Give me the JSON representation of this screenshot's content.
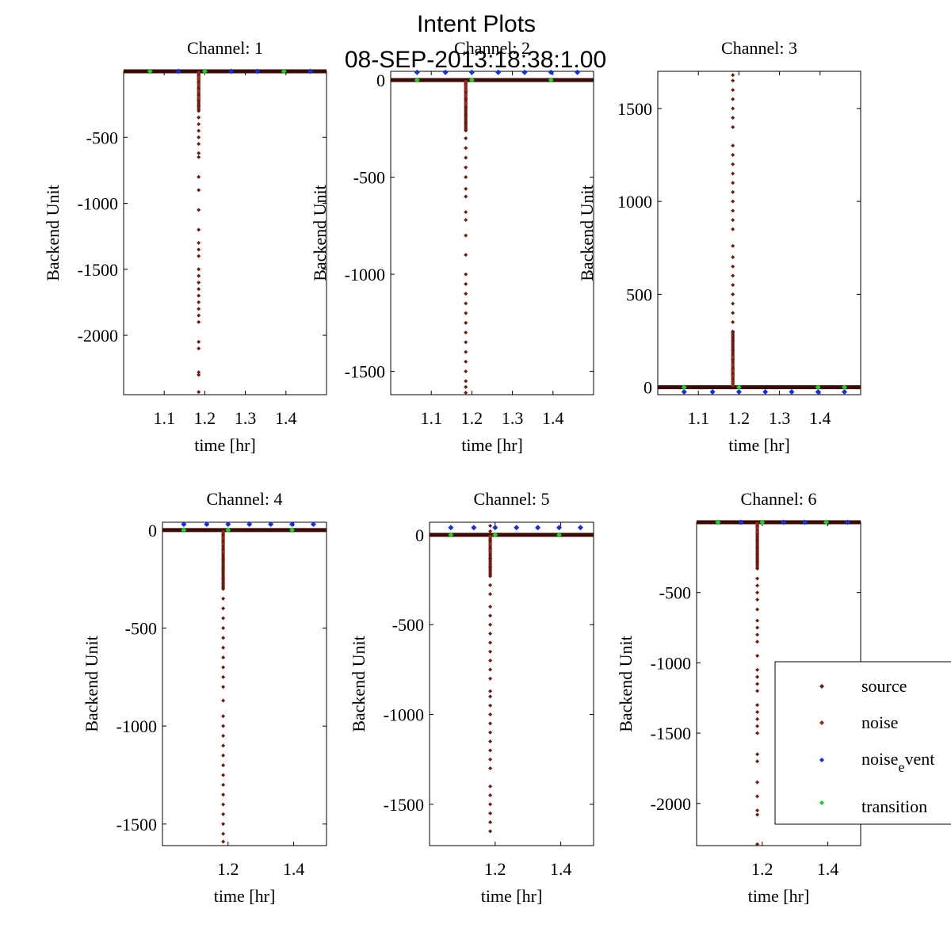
{
  "figure": {
    "title": "Intent Plots",
    "subtitle": "08-SEP-2013:18:38:1.00"
  },
  "legend": {
    "placement": "bottom-right",
    "entries": [
      {
        "label": "source",
        "color": "#6b1a10"
      },
      {
        "label": "noise",
        "color": "#a0281a"
      },
      {
        "label": "noise",
        "sub": "e",
        "rest": "vent",
        "color": "#1030e0"
      },
      {
        "label": "transition",
        "color": "#20d020"
      }
    ]
  },
  "chart_data": [
    {
      "type": "scatter",
      "title": "Channel: 1",
      "xlabel": "time [hr]",
      "ylabel": "Backend Unit",
      "xlim": [
        1.0,
        1.5
      ],
      "ylim": [
        -2450,
        0
      ],
      "xticks": [
        1.1,
        1.2,
        1.3,
        1.4
      ],
      "xtick_labels": [
        "1.1",
        "1.2",
        "1.3",
        "1.4"
      ],
      "yticks": [
        -500,
        -1000,
        -1500,
        -2000
      ],
      "ytick_labels": [
        "-500",
        "-1000",
        "-1500",
        "-2000"
      ],
      "baseline": 0,
      "event_x": 1.185,
      "noise_event": {
        "x": [
          1.065,
          1.135,
          1.2,
          1.265,
          1.33,
          1.395,
          1.46
        ],
        "y": [
          0,
          0,
          0,
          0,
          0,
          0,
          0
        ]
      },
      "transition": {
        "x": [
          1.065,
          1.2,
          1.395
        ],
        "y": [
          0,
          0,
          0
        ]
      },
      "source": {
        "x": 1.185,
        "y": [
          -30,
          -80,
          -130,
          -180,
          -220,
          -260,
          -300,
          -350,
          -400,
          -450,
          -500,
          -550,
          -620,
          -650,
          -800,
          -900,
          -1050,
          -1200,
          -1300,
          -1350,
          -1400,
          -1500,
          -1550,
          -1600,
          -1650,
          -1700,
          -1750,
          -1800,
          -1850,
          -1900,
          -2050,
          -2100,
          -2280,
          -2300,
          -2430
        ]
      },
      "noise": {
        "x": 1.185,
        "y": [
          -10,
          -40,
          -60,
          -100,
          -150,
          -200
        ]
      }
    },
    {
      "type": "scatter",
      "title": "Channel: 2",
      "xlabel": "time [hr]",
      "ylabel": "Backend Unit",
      "xlim": [
        1.0,
        1.5
      ],
      "ylim": [
        -1620,
        45
      ],
      "xticks": [
        1.1,
        1.2,
        1.3,
        1.4
      ],
      "xtick_labels": [
        "1.1",
        "1.2",
        "1.3",
        "1.4"
      ],
      "yticks": [
        0,
        -500,
        -1000,
        -1500
      ],
      "ytick_labels": [
        "0",
        "-500",
        "-1000",
        "-1500"
      ],
      "baseline": 0,
      "event_x": 1.185,
      "noise_event": {
        "x": [
          1.065,
          1.135,
          1.2,
          1.265,
          1.33,
          1.395,
          1.46
        ],
        "y": [
          40,
          40,
          40,
          40,
          40,
          40,
          40
        ]
      },
      "transition": {
        "x": [
          1.065,
          1.2,
          1.395
        ],
        "y": [
          0,
          0,
          0
        ]
      },
      "source": {
        "x": 1.185,
        "y": [
          -20,
          -60,
          -100,
          -140,
          -180,
          -220,
          -260,
          -300,
          -350,
          -400,
          -450,
          -500,
          -560,
          -600,
          -680,
          -720,
          -800,
          -900,
          -1000,
          -1050,
          -1100,
          -1150,
          -1200,
          -1250,
          -1300,
          -1350,
          -1400,
          -1450,
          -1500,
          -1550,
          -1580,
          -1610
        ]
      },
      "noise": {
        "x": 1.185,
        "y": [
          -10,
          -30,
          -50,
          -80,
          -120
        ]
      }
    },
    {
      "type": "scatter",
      "title": "Channel: 3",
      "xlabel": "time [hr]",
      "ylabel": "Backend Unit",
      "xlim": [
        1.0,
        1.5
      ],
      "ylim": [
        -40,
        1700
      ],
      "xticks": [
        1.1,
        1.2,
        1.3,
        1.4
      ],
      "xtick_labels": [
        "1.1",
        "1.2",
        "1.3",
        "1.4"
      ],
      "yticks": [
        0,
        500,
        1000,
        1500
      ],
      "ytick_labels": [
        "0",
        "500",
        "1000",
        "1500"
      ],
      "baseline": 0,
      "event_x": 1.185,
      "noise_event": {
        "x": [
          1.065,
          1.135,
          1.2,
          1.265,
          1.33,
          1.395,
          1.46
        ],
        "y": [
          -25,
          -25,
          -25,
          -25,
          -25,
          -25,
          -25
        ]
      },
      "transition": {
        "x": [
          1.065,
          1.2,
          1.395,
          1.46
        ],
        "y": [
          0,
          0,
          0,
          0
        ]
      },
      "source": {
        "x": 1.185,
        "y": [
          30,
          70,
          100,
          150,
          200,
          250,
          300,
          350,
          400,
          450,
          500,
          550,
          600,
          650,
          700,
          760,
          850,
          900,
          950,
          1000,
          1050,
          1100,
          1150,
          1200,
          1250,
          1300,
          1400,
          1450,
          1500,
          1550,
          1600,
          1650,
          1680
        ]
      },
      "noise": {
        "x": 1.185,
        "y": [
          10,
          30,
          60,
          90,
          120,
          160
        ]
      }
    },
    {
      "type": "scatter",
      "title": "Channel: 4",
      "xlabel": "time [hr]",
      "ylabel": "Backend Unit",
      "xlim": [
        1.0,
        1.5
      ],
      "ylim": [
        -1610,
        40
      ],
      "xticks": [
        1.2,
        1.4
      ],
      "xtick_labels": [
        "1.2",
        "1.4"
      ],
      "yticks": [
        0,
        -500,
        -1000,
        -1500
      ],
      "ytick_labels": [
        "0",
        "-500",
        "-1000",
        "-1500"
      ],
      "baseline": 0,
      "event_x": 1.185,
      "noise_event": {
        "x": [
          1.065,
          1.135,
          1.2,
          1.265,
          1.33,
          1.395,
          1.46
        ],
        "y": [
          30,
          30,
          30,
          30,
          30,
          30,
          30
        ]
      },
      "transition": {
        "x": [
          1.065,
          1.2,
          1.395
        ],
        "y": [
          0,
          0,
          0
        ]
      },
      "source": {
        "x": 1.185,
        "y": [
          -20,
          -60,
          -100,
          -150,
          -200,
          -250,
          -300,
          -350,
          -400,
          -450,
          -500,
          -550,
          -600,
          -650,
          -700,
          -750,
          -800,
          -870,
          -950,
          -1000,
          -1050,
          -1100,
          -1150,
          -1200,
          -1250,
          -1300,
          -1350,
          -1400,
          -1450,
          -1500,
          -1550,
          -1590
        ]
      },
      "noise": {
        "x": 1.185,
        "y": [
          -10,
          -40,
          -70,
          -110
        ]
      }
    },
    {
      "type": "scatter",
      "title": "Channel: 5",
      "xlabel": "time [hr]",
      "ylabel": "Backend Unit",
      "xlim": [
        1.0,
        1.5
      ],
      "ylim": [
        -1730,
        70
      ],
      "xticks": [
        1.2,
        1.4
      ],
      "xtick_labels": [
        "1.2",
        "1.4"
      ],
      "yticks": [
        0,
        -500,
        -1000,
        -1500
      ],
      "ytick_labels": [
        "0",
        "-500",
        "-1000",
        "-1500"
      ],
      "baseline": 0,
      "event_x": 1.185,
      "noise_event": {
        "x": [
          1.065,
          1.135,
          1.2,
          1.265,
          1.33,
          1.395,
          1.46
        ],
        "y": [
          40,
          40,
          40,
          40,
          40,
          40,
          40
        ]
      },
      "transition": {
        "x": [
          1.065,
          1.2,
          1.395
        ],
        "y": [
          0,
          0,
          0
        ]
      },
      "source": {
        "x": 1.185,
        "y": [
          50,
          20,
          -30,
          -80,
          -130,
          -180,
          -230,
          -280,
          -330,
          -400,
          -450,
          -500,
          -550,
          -600,
          -650,
          -700,
          -750,
          -800,
          -870,
          -900,
          -950,
          -1000,
          -1050,
          -1100,
          -1150,
          -1200,
          -1250,
          -1300,
          -1400,
          -1450,
          -1500,
          -1550,
          -1600,
          -1650
        ]
      },
      "noise": {
        "x": 1.185,
        "y": [
          -10,
          -50,
          -90
        ]
      }
    },
    {
      "type": "scatter",
      "title": "Channel: 6",
      "xlabel": "time [hr]",
      "ylabel": "Backend Unit",
      "xlim": [
        1.0,
        1.5
      ],
      "ylim": [
        -2300,
        0
      ],
      "xticks": [
        1.2,
        1.4
      ],
      "xtick_labels": [
        "1.2",
        "1.4"
      ],
      "yticks": [
        -500,
        -1000,
        -1500,
        -2000
      ],
      "ytick_labels": [
        "-500",
        "-1000",
        "-1500",
        "-2000"
      ],
      "baseline": 0,
      "event_x": 1.185,
      "noise_event": {
        "x": [
          1.065,
          1.135,
          1.2,
          1.265,
          1.33,
          1.395,
          1.46
        ],
        "y": [
          0,
          0,
          0,
          0,
          0,
          0,
          0
        ]
      },
      "transition": {
        "x": [
          1.065,
          1.2,
          1.395
        ],
        "y": [
          0,
          0,
          0
        ]
      },
      "source": {
        "x": 1.185,
        "y": [
          -30,
          -80,
          -130,
          -180,
          -230,
          -280,
          -330,
          -400,
          -450,
          -500,
          -550,
          -620,
          -700,
          -750,
          -800,
          -850,
          -950,
          -1050,
          -1100,
          -1150,
          -1200,
          -1300,
          -1350,
          -1400,
          -1450,
          -1500,
          -1650,
          -1700,
          -1850,
          -1950,
          -2050,
          -2080,
          -2290
        ]
      },
      "noise": {
        "x": 1.185,
        "y": [
          -10,
          -40,
          -70
        ]
      }
    }
  ]
}
